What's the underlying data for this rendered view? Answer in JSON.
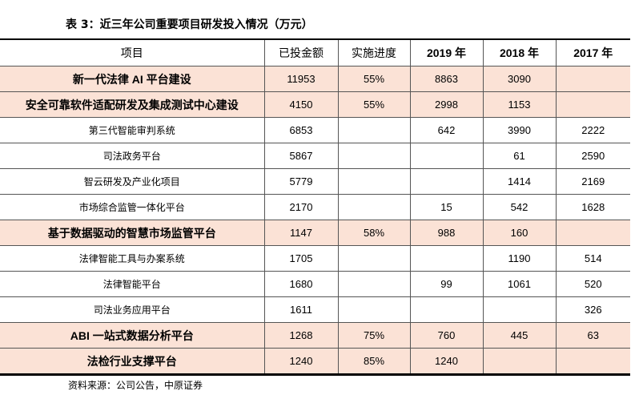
{
  "title": "表 3：近三年公司重要项目研发投入情况（万元）",
  "headers": [
    "项目",
    "已投金额",
    "实施进度",
    "2019 年",
    "2018 年",
    "2017 年"
  ],
  "highlight_color": "#fbe2d6",
  "rows": [
    {
      "name": "新一代法律 AI 平台建设",
      "amount": "11953",
      "progress": "55%",
      "y2019": "8863",
      "y2018": "3090",
      "y2017": "",
      "highlight": true
    },
    {
      "name": "安全可靠软件适配研发及集成测试中心建设",
      "amount": "4150",
      "progress": "55%",
      "y2019": "2998",
      "y2018": "1153",
      "y2017": "",
      "highlight": true
    },
    {
      "name": "第三代智能审判系统",
      "amount": "6853",
      "progress": "",
      "y2019": "642",
      "y2018": "3990",
      "y2017": "2222",
      "highlight": false
    },
    {
      "name": "司法政务平台",
      "amount": "5867",
      "progress": "",
      "y2019": "",
      "y2018": "61",
      "y2017": "2590",
      "highlight": false
    },
    {
      "name": "智云研发及产业化项目",
      "amount": "5779",
      "progress": "",
      "y2019": "",
      "y2018": "1414",
      "y2017": "2169",
      "highlight": false
    },
    {
      "name": "市场综合监管一体化平台",
      "amount": "2170",
      "progress": "",
      "y2019": "15",
      "y2018": "542",
      "y2017": "1628",
      "highlight": false
    },
    {
      "name": "基于数据驱动的智慧市场监管平台",
      "amount": "1147",
      "progress": "58%",
      "y2019": "988",
      "y2018": "160",
      "y2017": "",
      "highlight": true
    },
    {
      "name": "法律智能工具与办案系统",
      "amount": "1705",
      "progress": "",
      "y2019": "",
      "y2018": "1190",
      "y2017": "514",
      "highlight": false
    },
    {
      "name": "法律智能平台",
      "amount": "1680",
      "progress": "",
      "y2019": "99",
      "y2018": "1061",
      "y2017": "520",
      "highlight": false
    },
    {
      "name": "司法业务应用平台",
      "amount": "1611",
      "progress": "",
      "y2019": "",
      "y2018": "",
      "y2017": "326",
      "highlight": false
    },
    {
      "name": "ABI 一站式数据分析平台",
      "amount": "1268",
      "progress": "75%",
      "y2019": "760",
      "y2018": "445",
      "y2017": "63",
      "highlight": true
    },
    {
      "name": "法检行业支撑平台",
      "amount": "1240",
      "progress": "85%",
      "y2019": "1240",
      "y2018": "",
      "y2017": "",
      "highlight": true
    }
  ],
  "source": "资料来源：公司公告，中原证券"
}
